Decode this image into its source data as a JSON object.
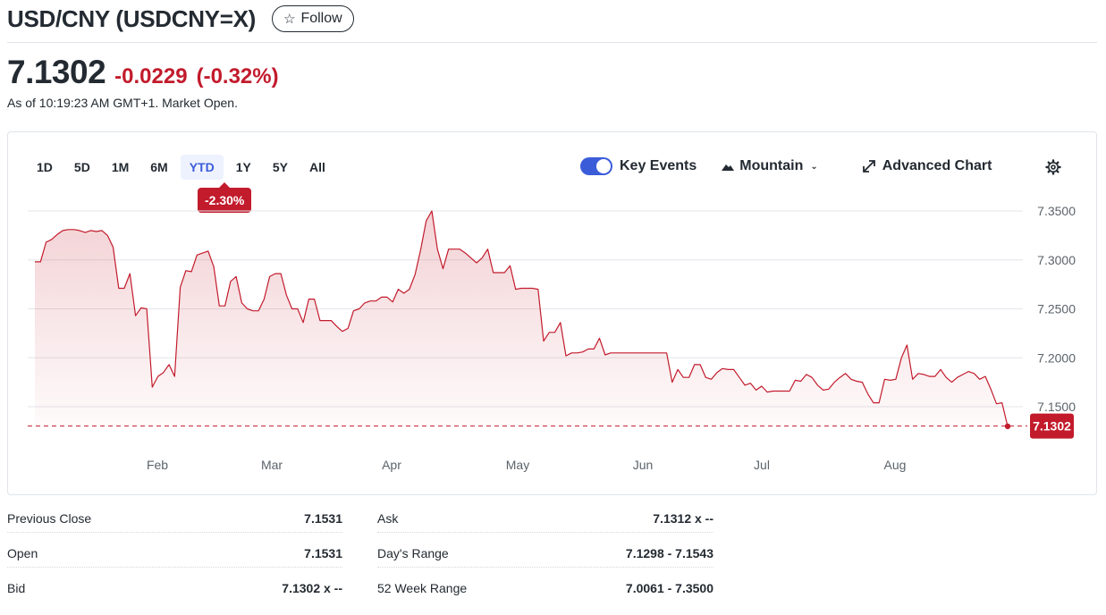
{
  "header": {
    "title": "USD/CNY (USDCNY=X)",
    "follow_label": "Follow"
  },
  "quote": {
    "price": "7.1302",
    "change": "-0.0229",
    "change_pct": "(-0.32%)",
    "as_of": "As of 10:19:23 AM GMT+1. Market Open."
  },
  "chart_controls": {
    "ranges": [
      "1D",
      "5D",
      "1M",
      "6M",
      "YTD",
      "1Y",
      "5Y",
      "All"
    ],
    "active_range": "YTD",
    "range_change_badge": "-2.30%",
    "key_events_label": "Key Events",
    "key_events_on": true,
    "chart_type_label": "Mountain",
    "advanced_chart_label": "Advanced Chart"
  },
  "colors": {
    "line": "#c21b2c",
    "accent": "#3b5cd9",
    "negative": "#c21b2c"
  },
  "chart_data": {
    "type": "area",
    "x_tick_labels": [
      "Feb",
      "Mar",
      "Apr",
      "May",
      "Jun",
      "Jul",
      "Aug"
    ],
    "y_tick_labels": [
      "7.3500",
      "7.3000",
      "7.2500",
      "7.2000",
      "7.1500"
    ],
    "ylim": [
      7.13,
      7.35
    ],
    "current_value": 7.1302,
    "current_value_label": "7.1302",
    "reference_line": "dashed",
    "series": [
      {
        "values": [
          7.298,
          7.298,
          7.318,
          7.321,
          7.326,
          7.33,
          7.331,
          7.331,
          7.33,
          7.328,
          7.33,
          7.329,
          7.33,
          7.325,
          7.313,
          7.271,
          7.271,
          7.286,
          7.243,
          7.251,
          7.25,
          7.17,
          7.181,
          7.185,
          7.193,
          7.181,
          7.272,
          7.289,
          7.288,
          7.305,
          7.307,
          7.309,
          7.293,
          7.253,
          7.253,
          7.278,
          7.283,
          7.256,
          7.25,
          7.248,
          7.248,
          7.26,
          7.283,
          7.286,
          7.286,
          7.264,
          7.25,
          7.25,
          7.236,
          7.26,
          7.26,
          7.238,
          7.238,
          7.238,
          7.232,
          7.227,
          7.23,
          7.248,
          7.25,
          7.256,
          7.258,
          7.258,
          7.262,
          7.262,
          7.257,
          7.27,
          7.266,
          7.27,
          7.285,
          7.31,
          7.34,
          7.35,
          7.311,
          7.291,
          7.311,
          7.311,
          7.311,
          7.307,
          7.302,
          7.297,
          7.302,
          7.311,
          7.287,
          7.287,
          7.287,
          7.294,
          7.27,
          7.271,
          7.271,
          7.271,
          7.27,
          7.217,
          7.226,
          7.226,
          7.236,
          7.202,
          7.205,
          7.205,
          7.206,
          7.209,
          7.209,
          7.22,
          7.203,
          7.205,
          7.205,
          7.205,
          7.205,
          7.205,
          7.205,
          7.205,
          7.205,
          7.205,
          7.205,
          7.205,
          7.175,
          7.188,
          7.18,
          7.18,
          7.193,
          7.193,
          7.18,
          7.178,
          7.185,
          7.189,
          7.188,
          7.188,
          7.18,
          7.172,
          7.174,
          7.167,
          7.171,
          7.165,
          7.166,
          7.166,
          7.166,
          7.166,
          7.177,
          7.176,
          7.183,
          7.18,
          7.172,
          7.167,
          7.168,
          7.175,
          7.18,
          7.184,
          7.178,
          7.176,
          7.175,
          7.163,
          7.154,
          7.154,
          7.178,
          7.177,
          7.178,
          7.2,
          7.213,
          7.178,
          7.184,
          7.183,
          7.181,
          7.181,
          7.188,
          7.18,
          7.175,
          7.18,
          7.183,
          7.186,
          7.184,
          7.178,
          7.181,
          7.168,
          7.153,
          7.154,
          7.13
        ]
      }
    ]
  },
  "stats": [
    {
      "label": "Previous Close",
      "value": "7.1531"
    },
    {
      "label": "Open",
      "value": "7.1531"
    },
    {
      "label": "Bid",
      "value": "7.1302 x --"
    },
    {
      "label": "Ask",
      "value": "7.1312 x --"
    },
    {
      "label": "Day's Range",
      "value": "7.1298 - 7.1543"
    },
    {
      "label": "52 Week Range",
      "value": "7.0061 - 7.3500"
    }
  ]
}
